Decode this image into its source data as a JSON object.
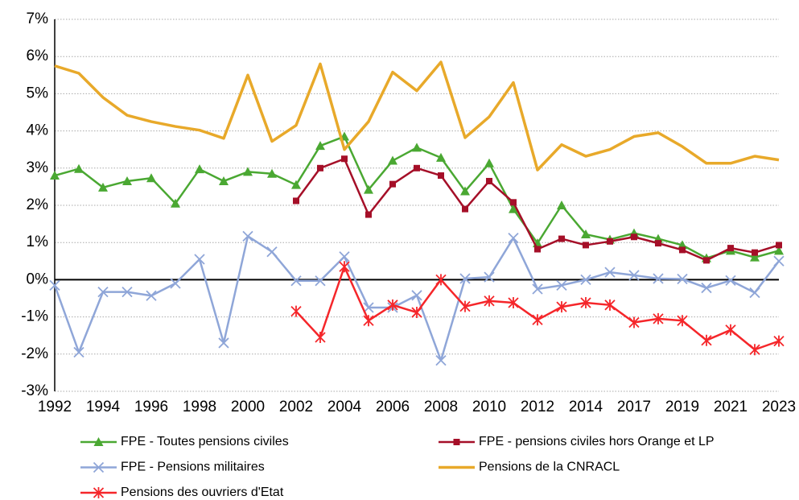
{
  "chart_data": {
    "type": "line",
    "categories": [
      "1992",
      null,
      "1994",
      null,
      "1996",
      null,
      "1998",
      null,
      "2000",
      null,
      "2002",
      null,
      "2004",
      null,
      "2006",
      null,
      "2008",
      null,
      "2010",
      null,
      "2012",
      null,
      "2014",
      null,
      "2017",
      null,
      "2019",
      null,
      "2021",
      null,
      "2023"
    ],
    "ylim": [
      -3,
      7
    ],
    "yticks": [
      {
        "value": -3,
        "label": "-3%"
      },
      {
        "value": -2,
        "label": "-2%"
      },
      {
        "value": -1,
        "label": "-1%"
      },
      {
        "value": 0,
        "label": "0%"
      },
      {
        "value": 1,
        "label": "1%"
      },
      {
        "value": 2,
        "label": "2%"
      },
      {
        "value": 3,
        "label": "3%"
      },
      {
        "value": 4,
        "label": "4%"
      },
      {
        "value": 5,
        "label": "5%"
      },
      {
        "value": 6,
        "label": "6%"
      },
      {
        "value": 7,
        "label": "7%"
      }
    ],
    "grid": true,
    "legend": "bottom",
    "series": [
      {
        "name": "FPE - Toutes pensions civiles",
        "color": "#4aa832",
        "marker": "triangle",
        "values": [
          2.8,
          2.98,
          2.48,
          2.65,
          2.73,
          2.05,
          2.97,
          2.65,
          2.9,
          2.85,
          2.55,
          3.6,
          3.85,
          2.42,
          3.2,
          3.55,
          3.28,
          2.38,
          3.13,
          1.9,
          0.98,
          2.0,
          1.22,
          1.08,
          1.25,
          1.1,
          0.93,
          0.58,
          0.78,
          0.6,
          0.78
        ]
      },
      {
        "name": "FPE - pensions civiles hors Orange et LP",
        "color": "#a50f28",
        "marker": "square",
        "values": [
          null,
          null,
          null,
          null,
          null,
          null,
          null,
          null,
          null,
          null,
          2.12,
          3.0,
          3.25,
          1.75,
          2.57,
          3.0,
          2.8,
          1.9,
          2.65,
          2.08,
          0.82,
          1.1,
          0.93,
          1.03,
          1.15,
          0.98,
          0.8,
          0.52,
          0.85,
          0.73,
          0.93
        ]
      },
      {
        "name": "FPE - Pensions militaires",
        "color": "#8fa6d8",
        "marker": "x",
        "values": [
          -0.15,
          -1.95,
          -0.33,
          -0.33,
          -0.43,
          -0.1,
          0.55,
          -1.7,
          1.17,
          0.75,
          -0.03,
          -0.03,
          0.62,
          -0.75,
          -0.75,
          -0.42,
          -2.17,
          0.03,
          0.07,
          1.12,
          -0.25,
          -0.15,
          0.0,
          0.2,
          0.12,
          0.03,
          0.02,
          -0.22,
          -0.02,
          -0.35,
          0.5
        ]
      },
      {
        "name": "Pensions de la CNRACL",
        "color": "#e8a92a",
        "values": [
          5.75,
          5.55,
          4.9,
          4.42,
          4.25,
          4.12,
          4.02,
          3.8,
          5.5,
          3.72,
          4.15,
          5.8,
          3.5,
          4.25,
          5.58,
          5.08,
          5.85,
          3.82,
          4.38,
          5.3,
          2.95,
          3.63,
          3.32,
          3.5,
          3.85,
          3.95,
          3.58,
          3.13,
          3.13,
          3.32,
          3.22
        ]
      },
      {
        "name": "Pensions des ouvriers d'Etat",
        "color": "#f5262a",
        "marker": "star",
        "values": [
          null,
          null,
          null,
          null,
          null,
          null,
          null,
          null,
          null,
          null,
          -0.85,
          -1.55,
          0.35,
          -1.1,
          -0.68,
          -0.88,
          0.0,
          -0.72,
          -0.57,
          -0.62,
          -1.08,
          -0.73,
          -0.62,
          -0.68,
          -1.15,
          -1.05,
          -1.1,
          -1.63,
          -1.35,
          -1.88,
          -1.65
        ]
      }
    ]
  }
}
